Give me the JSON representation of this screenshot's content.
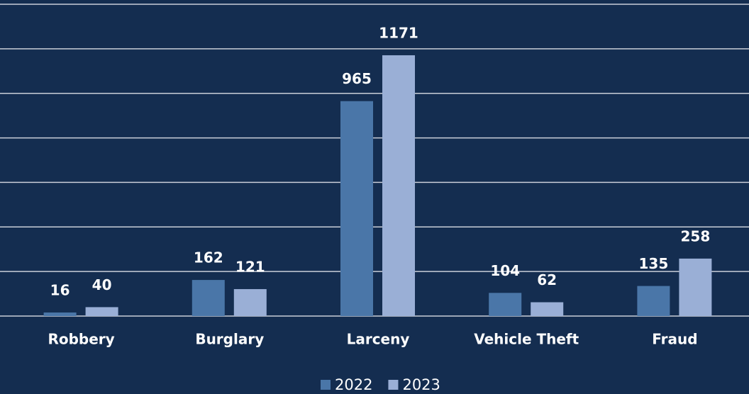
{
  "chart_data": {
    "type": "bar",
    "categories": [
      "Robbery",
      "Burglary",
      "Larceny",
      "Vehicle Theft",
      "Fraud"
    ],
    "series": [
      {
        "name": "2022",
        "color": "#4a76a8",
        "values": [
          16,
          162,
          965,
          104,
          135
        ]
      },
      {
        "name": "2023",
        "color": "#9aafd6",
        "values": [
          40,
          121,
          1171,
          62,
          258
        ]
      }
    ],
    "ylim": [
      0,
      1400
    ],
    "yticks": [
      0,
      200,
      400,
      600,
      800,
      1000,
      1200,
      1400
    ],
    "grid": true,
    "legend": "bottom"
  }
}
